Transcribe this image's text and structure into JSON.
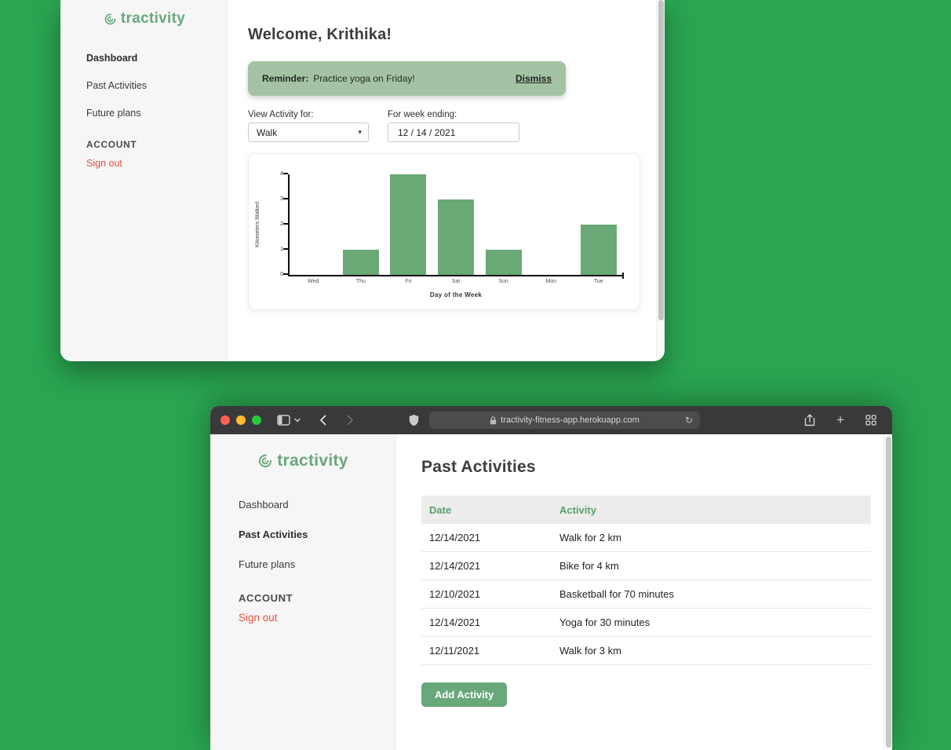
{
  "colors": {
    "background": "#2aa550",
    "brand_green": "#69a87c",
    "banner_green": "#a4c3a5",
    "bar_green": "#6aa876",
    "signout_red": "#e2543f",
    "table_header_text_green": "#5aa06b",
    "button_green": "#68a87b",
    "toolbar_dark": "#39393b"
  },
  "dashboard_window": {
    "sidebar": {
      "logo_text": "tractivity",
      "items": [
        {
          "label": "Dashboard",
          "active": true
        },
        {
          "label": "Past Activities",
          "active": false
        },
        {
          "label": "Future plans",
          "active": false
        }
      ],
      "account_heading": "ACCOUNT",
      "signout_label": "Sign out"
    },
    "main": {
      "welcome_heading": "Welcome, Krithika!",
      "reminder": {
        "label": "Reminder:",
        "message": "Practice yoga on Friday!",
        "dismiss_label": "Dismiss"
      },
      "activity_select": {
        "label": "View Activity for:",
        "selected_option": "Walk",
        "caret_glyph": "▾"
      },
      "week_ending": {
        "label": "For week ending:",
        "value": "12 / 14 / 2021"
      }
    }
  },
  "chart_data": {
    "type": "bar",
    "categories": [
      "Wed",
      "Thu",
      "Fri",
      "Sat",
      "Sun",
      "Mon",
      "Tue"
    ],
    "values": [
      0,
      1,
      4,
      3,
      1,
      0,
      2
    ],
    "title": "",
    "xlabel": "Day of the Week",
    "ylabel": "Kilometers Walked",
    "ylim": [
      0,
      4
    ],
    "yticks": [
      0,
      1,
      2,
      3,
      4
    ],
    "bar_color": "#6aa876",
    "grid": false
  },
  "browser_window": {
    "toolbar": {
      "url": "tractivity-fitness-app.herokuapp.com",
      "reload_glyph": "↻",
      "plus_glyph": "+"
    },
    "sidebar": {
      "logo_text": "tractivity",
      "items": [
        {
          "label": "Dashboard",
          "active": false
        },
        {
          "label": "Past Activities",
          "active": true
        },
        {
          "label": "Future plans",
          "active": false
        }
      ],
      "account_heading": "ACCOUNT",
      "signout_label": "Sign out"
    },
    "main": {
      "heading": "Past Activities",
      "table": {
        "columns": [
          "Date",
          "Activity"
        ],
        "rows": [
          {
            "date": "12/14/2021",
            "activity": "Walk for 2 km"
          },
          {
            "date": "12/14/2021",
            "activity": "Bike for 4 km"
          },
          {
            "date": "12/10/2021",
            "activity": "Basketball for 70 minutes"
          },
          {
            "date": "12/14/2021",
            "activity": "Yoga for 30 minutes"
          },
          {
            "date": "12/11/2021",
            "activity": "Walk for 3 km"
          }
        ]
      },
      "add_activity_label": "Add Activity"
    }
  }
}
